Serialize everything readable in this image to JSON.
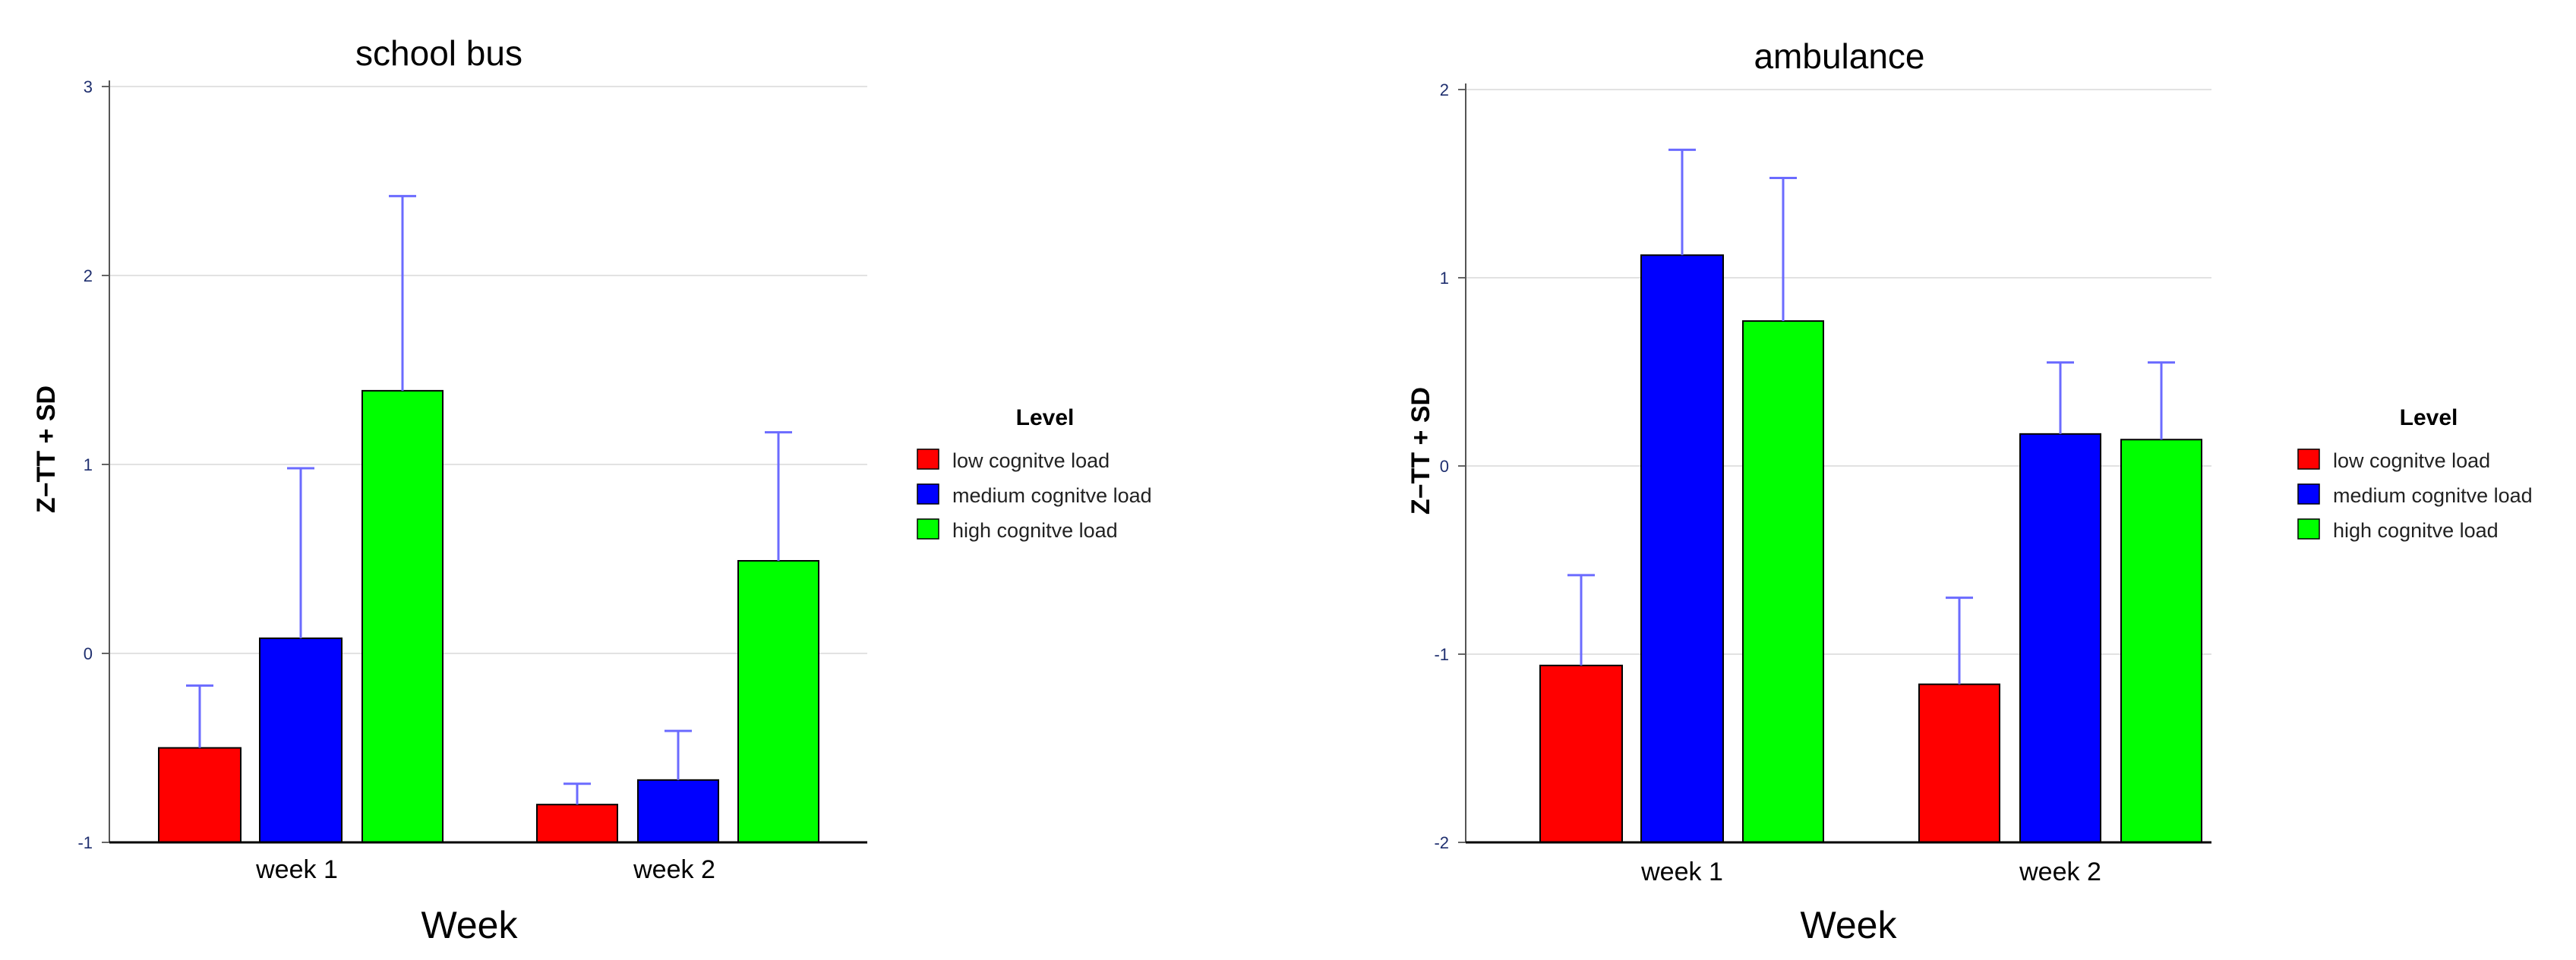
{
  "chart_data": [
    {
      "type": "bar",
      "title": "school bus",
      "xlabel": "Week",
      "ylabel": "Z−TT + SD",
      "ylim": [
        -1,
        3
      ],
      "yticks": [
        "-1",
        "0",
        "1",
        "2",
        "3"
      ],
      "categories": [
        "week 1",
        "week 2"
      ],
      "grid": true,
      "legend": {
        "title": "Level",
        "placement": "right"
      },
      "series": [
        {
          "name": "low cognitve load",
          "color": "#ff0000",
          "values": [
            -0.5,
            -0.8
          ],
          "sd": [
            0.33,
            0.11
          ]
        },
        {
          "name": "medium cognitve load",
          "color": "#0000ff",
          "values": [
            0.08,
            -0.67
          ],
          "sd": [
            0.9,
            0.26
          ]
        },
        {
          "name": "high cognitve load",
          "color": "#00ff00",
          "values": [
            1.39,
            0.49
          ],
          "sd": [
            1.03,
            0.68
          ]
        }
      ]
    },
    {
      "type": "bar",
      "title": "ambulance",
      "xlabel": "Week",
      "ylabel": "Z−TT + SD",
      "ylim": [
        -2,
        2
      ],
      "yticks": [
        "-2",
        "-1",
        "0",
        "1",
        "2"
      ],
      "categories": [
        "week 1",
        "week 2"
      ],
      "grid": true,
      "legend": {
        "title": "Level",
        "placement": "right"
      },
      "series": [
        {
          "name": "low cognitve load",
          "color": "#ff0000",
          "values": [
            -1.06,
            -1.16
          ],
          "sd": [
            0.48,
            0.46
          ]
        },
        {
          "name": "medium cognitve load",
          "color": "#0000ff",
          "values": [
            1.12,
            0.17
          ],
          "sd": [
            0.56,
            0.38
          ]
        },
        {
          "name": "high cognitve load",
          "color": "#00ff00",
          "values": [
            0.77,
            0.14
          ],
          "sd": [
            0.76,
            0.41
          ]
        }
      ]
    }
  ]
}
